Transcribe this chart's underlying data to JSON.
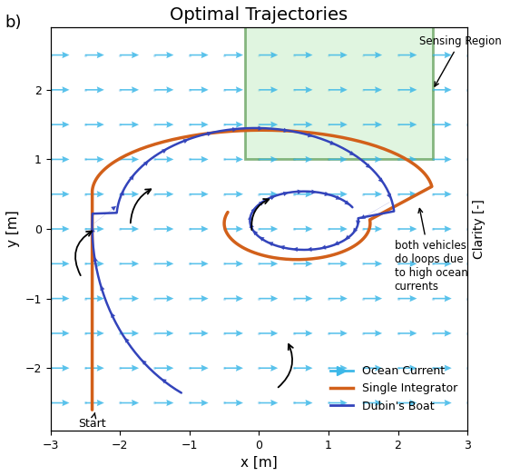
{
  "title": "Optimal Trajectories",
  "panel_label": "b)",
  "xlabel": "x [m]",
  "ylabel": "y [m]",
  "xlim": [
    -3,
    3
  ],
  "ylim": [
    -3,
    3
  ],
  "sensing_region": [
    -0.2,
    2.5,
    1.0,
    3.0
  ],
  "sensing_region_color": "#C8EEC8",
  "sensing_region_edge": "#2E7D22",
  "ocean_current_color": "#3DB8E8",
  "single_integrator_color": "#D2601A",
  "dubins_boat_color": "#3344BB",
  "background_color": "#FFFFFF",
  "annotation_loops": "both vehicles\ndo loops due\nto high ocean\ncurrents",
  "annotation_start": "Start",
  "legend_entries": [
    "Ocean Current",
    "Single Integrator",
    "Dubin's Boat"
  ]
}
